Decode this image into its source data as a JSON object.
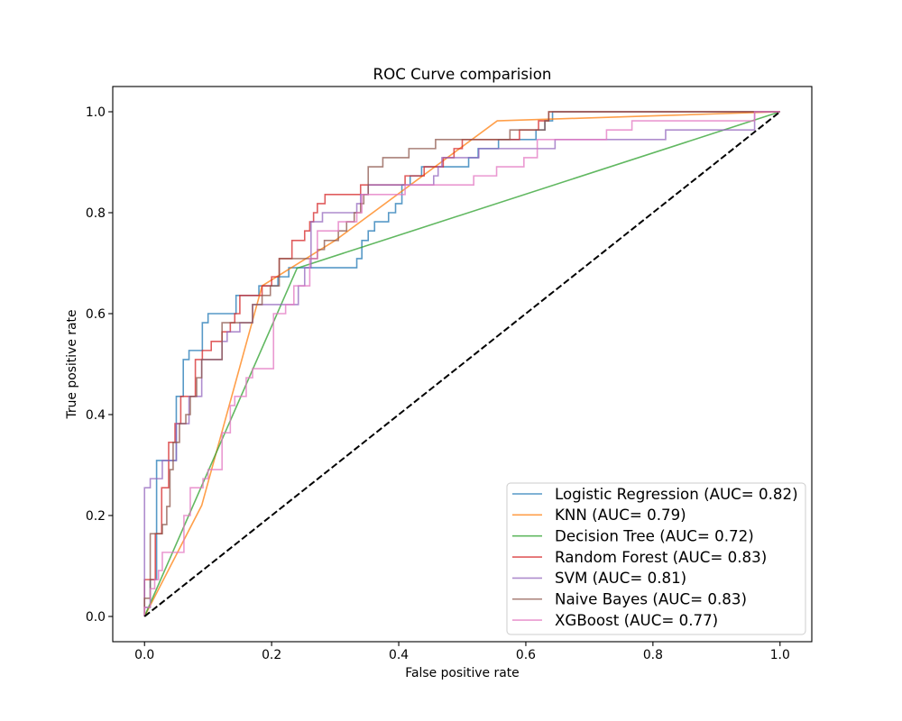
{
  "chart_data": {
    "type": "line",
    "title": "ROC Curve comparision",
    "xlabel": "False positive rate",
    "ylabel": "True positive rate",
    "xlim": [
      -0.05,
      1.05
    ],
    "ylim": [
      -0.05,
      1.05
    ],
    "xticks": [
      "0.0",
      "0.2",
      "0.4",
      "0.6",
      "0.8",
      "1.0"
    ],
    "yticks": [
      "0.0",
      "0.2",
      "0.4",
      "0.6",
      "0.8",
      "1.0"
    ],
    "grid": false,
    "legend_loc": "lower right",
    "series": [
      {
        "name": "Logistic Regression (AUC= 0.82)",
        "color": "#1f77b4",
        "points": [
          [
            0,
            0
          ],
          [
            0,
            0.018
          ],
          [
            0.009,
            0.018
          ],
          [
            0.009,
            0.073
          ],
          [
            0.019,
            0.073
          ],
          [
            0.019,
            0.309
          ],
          [
            0.05,
            0.309
          ],
          [
            0.05,
            0.436
          ],
          [
            0.061,
            0.436
          ],
          [
            0.061,
            0.509
          ],
          [
            0.07,
            0.509
          ],
          [
            0.07,
            0.527
          ],
          [
            0.091,
            0.527
          ],
          [
            0.091,
            0.582
          ],
          [
            0.1,
            0.582
          ],
          [
            0.1,
            0.6
          ],
          [
            0.144,
            0.6
          ],
          [
            0.144,
            0.636
          ],
          [
            0.18,
            0.636
          ],
          [
            0.18,
            0.655
          ],
          [
            0.21,
            0.655
          ],
          [
            0.21,
            0.673
          ],
          [
            0.227,
            0.673
          ],
          [
            0.227,
            0.691
          ],
          [
            0.334,
            0.691
          ],
          [
            0.334,
            0.709
          ],
          [
            0.342,
            0.709
          ],
          [
            0.342,
            0.745
          ],
          [
            0.352,
            0.745
          ],
          [
            0.352,
            0.764
          ],
          [
            0.362,
            0.764
          ],
          [
            0.362,
            0.782
          ],
          [
            0.384,
            0.782
          ],
          [
            0.384,
            0.8
          ],
          [
            0.395,
            0.8
          ],
          [
            0.395,
            0.818
          ],
          [
            0.405,
            0.818
          ],
          [
            0.405,
            0.855
          ],
          [
            0.418,
            0.855
          ],
          [
            0.418,
            0.873
          ],
          [
            0.436,
            0.873
          ],
          [
            0.436,
            0.891
          ],
          [
            0.51,
            0.891
          ],
          [
            0.51,
            0.909
          ],
          [
            0.525,
            0.909
          ],
          [
            0.525,
            0.927
          ],
          [
            0.557,
            0.927
          ],
          [
            0.557,
            0.945
          ],
          [
            0.616,
            0.945
          ],
          [
            0.616,
            0.964
          ],
          [
            0.63,
            0.964
          ],
          [
            0.63,
            0.982
          ],
          [
            0.642,
            0.982
          ],
          [
            0.642,
            1.0
          ],
          [
            1,
            1
          ]
        ]
      },
      {
        "name": "KNN (AUC= 0.79)",
        "color": "#ff7f0e",
        "points": [
          [
            0,
            0
          ],
          [
            0.09,
            0.22
          ],
          [
            0.185,
            0.655
          ],
          [
            0.3,
            0.745
          ],
          [
            0.555,
            0.982
          ],
          [
            1,
            1
          ]
        ]
      },
      {
        "name": "Decision Tree (AUC= 0.72)",
        "color": "#2ca02c",
        "points": [
          [
            0,
            0
          ],
          [
            0.24,
            0.69
          ],
          [
            1,
            1
          ]
        ]
      },
      {
        "name": "Random Forest (AUC= 0.83)",
        "color": "#d62728",
        "points": [
          [
            0,
            0
          ],
          [
            0,
            0.073
          ],
          [
            0.017,
            0.073
          ],
          [
            0.017,
            0.164
          ],
          [
            0.027,
            0.164
          ],
          [
            0.027,
            0.255
          ],
          [
            0.038,
            0.255
          ],
          [
            0.038,
            0.345
          ],
          [
            0.048,
            0.345
          ],
          [
            0.048,
            0.382
          ],
          [
            0.057,
            0.382
          ],
          [
            0.057,
            0.436
          ],
          [
            0.08,
            0.436
          ],
          [
            0.08,
            0.509
          ],
          [
            0.091,
            0.509
          ],
          [
            0.091,
            0.527
          ],
          [
            0.105,
            0.527
          ],
          [
            0.105,
            0.545
          ],
          [
            0.122,
            0.545
          ],
          [
            0.122,
            0.564
          ],
          [
            0.135,
            0.564
          ],
          [
            0.135,
            0.582
          ],
          [
            0.142,
            0.582
          ],
          [
            0.142,
            0.6
          ],
          [
            0.15,
            0.6
          ],
          [
            0.15,
            0.636
          ],
          [
            0.185,
            0.636
          ],
          [
            0.185,
            0.655
          ],
          [
            0.2,
            0.655
          ],
          [
            0.2,
            0.673
          ],
          [
            0.212,
            0.673
          ],
          [
            0.212,
            0.709
          ],
          [
            0.232,
            0.709
          ],
          [
            0.232,
            0.745
          ],
          [
            0.252,
            0.745
          ],
          [
            0.252,
            0.764
          ],
          [
            0.26,
            0.764
          ],
          [
            0.26,
            0.782
          ],
          [
            0.266,
            0.782
          ],
          [
            0.266,
            0.8
          ],
          [
            0.272,
            0.8
          ],
          [
            0.272,
            0.818
          ],
          [
            0.284,
            0.818
          ],
          [
            0.284,
            0.836
          ],
          [
            0.34,
            0.836
          ],
          [
            0.34,
            0.855
          ],
          [
            0.41,
            0.855
          ],
          [
            0.41,
            0.873
          ],
          [
            0.44,
            0.873
          ],
          [
            0.44,
            0.891
          ],
          [
            0.47,
            0.891
          ],
          [
            0.47,
            0.909
          ],
          [
            0.487,
            0.909
          ],
          [
            0.487,
            0.927
          ],
          [
            0.5,
            0.927
          ],
          [
            0.5,
            0.945
          ],
          [
            0.59,
            0.945
          ],
          [
            0.59,
            0.964
          ],
          [
            0.62,
            0.964
          ],
          [
            0.62,
            0.982
          ],
          [
            0.636,
            0.982
          ],
          [
            0.636,
            1.0
          ],
          [
            1,
            1
          ]
        ]
      },
      {
        "name": "SVM (AUC= 0.81)",
        "color": "#9467bd",
        "points": [
          [
            0,
            0
          ],
          [
            0,
            0.255
          ],
          [
            0.009,
            0.255
          ],
          [
            0.009,
            0.273
          ],
          [
            0.028,
            0.273
          ],
          [
            0.028,
            0.309
          ],
          [
            0.05,
            0.309
          ],
          [
            0.05,
            0.382
          ],
          [
            0.07,
            0.382
          ],
          [
            0.07,
            0.436
          ],
          [
            0.09,
            0.436
          ],
          [
            0.09,
            0.509
          ],
          [
            0.122,
            0.509
          ],
          [
            0.122,
            0.545
          ],
          [
            0.13,
            0.545
          ],
          [
            0.13,
            0.564
          ],
          [
            0.15,
            0.564
          ],
          [
            0.15,
            0.582
          ],
          [
            0.17,
            0.582
          ],
          [
            0.17,
            0.618
          ],
          [
            0.242,
            0.618
          ],
          [
            0.242,
            0.655
          ],
          [
            0.252,
            0.655
          ],
          [
            0.252,
            0.691
          ],
          [
            0.262,
            0.691
          ],
          [
            0.262,
            0.782
          ],
          [
            0.28,
            0.782
          ],
          [
            0.28,
            0.8
          ],
          [
            0.334,
            0.8
          ],
          [
            0.334,
            0.818
          ],
          [
            0.34,
            0.818
          ],
          [
            0.34,
            0.836
          ],
          [
            0.352,
            0.836
          ],
          [
            0.352,
            0.855
          ],
          [
            0.455,
            0.855
          ],
          [
            0.455,
            0.873
          ],
          [
            0.462,
            0.873
          ],
          [
            0.462,
            0.891
          ],
          [
            0.468,
            0.891
          ],
          [
            0.468,
            0.909
          ],
          [
            0.526,
            0.909
          ],
          [
            0.526,
            0.927
          ],
          [
            0.646,
            0.927
          ],
          [
            0.646,
            0.945
          ],
          [
            0.82,
            0.945
          ],
          [
            0.82,
            0.964
          ],
          [
            0.96,
            0.964
          ],
          [
            0.96,
            1.0
          ],
          [
            1,
            1
          ]
        ]
      },
      {
        "name": "Naive Bayes (AUC= 0.83)",
        "color": "#8c564b",
        "points": [
          [
            0,
            0
          ],
          [
            0,
            0.036
          ],
          [
            0.009,
            0.036
          ],
          [
            0.009,
            0.164
          ],
          [
            0.028,
            0.164
          ],
          [
            0.028,
            0.182
          ],
          [
            0.035,
            0.182
          ],
          [
            0.035,
            0.218
          ],
          [
            0.04,
            0.218
          ],
          [
            0.04,
            0.291
          ],
          [
            0.045,
            0.291
          ],
          [
            0.045,
            0.345
          ],
          [
            0.055,
            0.345
          ],
          [
            0.055,
            0.382
          ],
          [
            0.065,
            0.382
          ],
          [
            0.065,
            0.4
          ],
          [
            0.072,
            0.4
          ],
          [
            0.072,
            0.436
          ],
          [
            0.082,
            0.436
          ],
          [
            0.082,
            0.473
          ],
          [
            0.09,
            0.473
          ],
          [
            0.09,
            0.509
          ],
          [
            0.122,
            0.509
          ],
          [
            0.122,
            0.582
          ],
          [
            0.17,
            0.582
          ],
          [
            0.17,
            0.618
          ],
          [
            0.185,
            0.618
          ],
          [
            0.185,
            0.636
          ],
          [
            0.198,
            0.636
          ],
          [
            0.198,
            0.655
          ],
          [
            0.212,
            0.655
          ],
          [
            0.212,
            0.709
          ],
          [
            0.272,
            0.709
          ],
          [
            0.272,
            0.727
          ],
          [
            0.283,
            0.727
          ],
          [
            0.283,
            0.745
          ],
          [
            0.305,
            0.745
          ],
          [
            0.305,
            0.764
          ],
          [
            0.318,
            0.764
          ],
          [
            0.318,
            0.782
          ],
          [
            0.33,
            0.782
          ],
          [
            0.33,
            0.8
          ],
          [
            0.34,
            0.8
          ],
          [
            0.34,
            0.818
          ],
          [
            0.345,
            0.818
          ],
          [
            0.345,
            0.836
          ],
          [
            0.352,
            0.836
          ],
          [
            0.352,
            0.891
          ],
          [
            0.375,
            0.891
          ],
          [
            0.375,
            0.909
          ],
          [
            0.416,
            0.909
          ],
          [
            0.416,
            0.927
          ],
          [
            0.458,
            0.927
          ],
          [
            0.458,
            0.945
          ],
          [
            0.575,
            0.945
          ],
          [
            0.575,
            0.964
          ],
          [
            0.63,
            0.964
          ],
          [
            0.63,
            0.982
          ],
          [
            0.636,
            0.982
          ],
          [
            0.636,
            1.0
          ],
          [
            1,
            1
          ]
        ]
      },
      {
        "name": "XGBoost (AUC= 0.77)",
        "color": "#e377c2",
        "points": [
          [
            0,
            0
          ],
          [
            0,
            0.018
          ],
          [
            0.009,
            0.018
          ],
          [
            0.009,
            0.055
          ],
          [
            0.016,
            0.055
          ],
          [
            0.016,
            0.073
          ],
          [
            0.022,
            0.073
          ],
          [
            0.022,
            0.091
          ],
          [
            0.028,
            0.091
          ],
          [
            0.028,
            0.127
          ],
          [
            0.062,
            0.127
          ],
          [
            0.062,
            0.2
          ],
          [
            0.072,
            0.2
          ],
          [
            0.072,
            0.255
          ],
          [
            0.092,
            0.255
          ],
          [
            0.092,
            0.273
          ],
          [
            0.1,
            0.273
          ],
          [
            0.1,
            0.291
          ],
          [
            0.122,
            0.291
          ],
          [
            0.122,
            0.364
          ],
          [
            0.135,
            0.364
          ],
          [
            0.135,
            0.418
          ],
          [
            0.142,
            0.418
          ],
          [
            0.142,
            0.436
          ],
          [
            0.16,
            0.436
          ],
          [
            0.16,
            0.473
          ],
          [
            0.17,
            0.473
          ],
          [
            0.17,
            0.491
          ],
          [
            0.203,
            0.491
          ],
          [
            0.203,
            0.6
          ],
          [
            0.222,
            0.6
          ],
          [
            0.222,
            0.618
          ],
          [
            0.235,
            0.618
          ],
          [
            0.235,
            0.655
          ],
          [
            0.26,
            0.655
          ],
          [
            0.26,
            0.709
          ],
          [
            0.272,
            0.709
          ],
          [
            0.272,
            0.764
          ],
          [
            0.305,
            0.764
          ],
          [
            0.305,
            0.782
          ],
          [
            0.334,
            0.782
          ],
          [
            0.334,
            0.8
          ],
          [
            0.342,
            0.8
          ],
          [
            0.342,
            0.836
          ],
          [
            0.41,
            0.836
          ],
          [
            0.41,
            0.855
          ],
          [
            0.518,
            0.855
          ],
          [
            0.518,
            0.873
          ],
          [
            0.554,
            0.873
          ],
          [
            0.554,
            0.891
          ],
          [
            0.597,
            0.891
          ],
          [
            0.597,
            0.909
          ],
          [
            0.618,
            0.909
          ],
          [
            0.618,
            0.945
          ],
          [
            0.727,
            0.945
          ],
          [
            0.727,
            0.964
          ],
          [
            0.767,
            0.964
          ],
          [
            0.767,
            0.982
          ],
          [
            0.96,
            0.982
          ],
          [
            0.96,
            1.0
          ],
          [
            1,
            1
          ]
        ]
      }
    ],
    "reference_line": {
      "color": "#000000",
      "style": "dashed",
      "points": [
        [
          0,
          0
        ],
        [
          1,
          1
        ]
      ]
    }
  }
}
